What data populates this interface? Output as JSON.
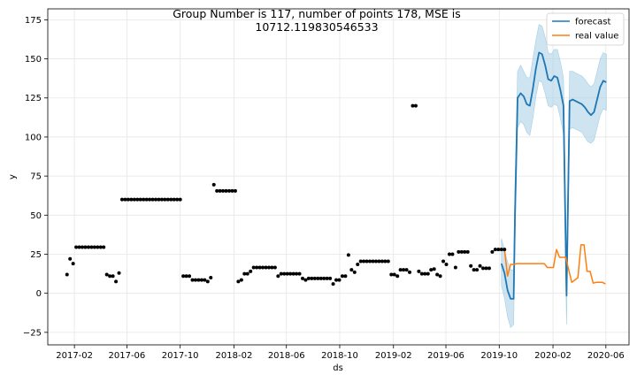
{
  "chart_data": {
    "type": "line",
    "title_lines": [
      "Group Number is 117, number of points 178, MSE is",
      "10712.119830546533"
    ],
    "xlabel": "ds",
    "ylabel": "y",
    "x_ticks": [
      "2017-02",
      "2017-06",
      "2017-10",
      "2018-02",
      "2018-06",
      "2018-10",
      "2019-02",
      "2019-06",
      "2019-10",
      "2020-02",
      "2020-06"
    ],
    "y_ticks": [
      "−25",
      "0",
      "25",
      "50",
      "75",
      "100",
      "125",
      "150",
      "175"
    ],
    "xlim": [
      "2016-12-02",
      "2020-07-24"
    ],
    "ylim": [
      -33,
      182
    ],
    "grid": true,
    "legend": {
      "position": "top-right",
      "entries": [
        "forecast",
        "real value"
      ]
    },
    "colors": {
      "forecast": "#1f77b4",
      "band": "#a6cee3",
      "real": "#ff7f0e",
      "points": "#000000"
    },
    "series": [
      {
        "name": "history",
        "kind": "scatter",
        "points": [
          [
            "2017-01-15",
            12
          ],
          [
            "2017-01-22",
            22
          ],
          [
            "2017-01-29",
            19
          ],
          [
            "2017-02-05",
            29.5
          ],
          [
            "2017-02-12",
            29.5
          ],
          [
            "2017-02-19",
            29.5
          ],
          [
            "2017-02-26",
            29.5
          ],
          [
            "2017-03-05",
            29.5
          ],
          [
            "2017-03-12",
            29.5
          ],
          [
            "2017-03-19",
            29.5
          ],
          [
            "2017-03-26",
            29.5
          ],
          [
            "2017-04-02",
            29.5
          ],
          [
            "2017-04-09",
            29.5
          ],
          [
            "2017-04-16",
            12
          ],
          [
            "2017-04-23",
            11
          ],
          [
            "2017-04-30",
            11
          ],
          [
            "2017-05-07",
            7.5
          ],
          [
            "2017-05-14",
            13
          ],
          [
            "2017-05-21",
            60
          ],
          [
            "2017-05-28",
            60
          ],
          [
            "2017-06-04",
            60
          ],
          [
            "2017-06-11",
            60
          ],
          [
            "2017-06-18",
            60
          ],
          [
            "2017-06-25",
            60
          ],
          [
            "2017-07-02",
            60
          ],
          [
            "2017-07-09",
            60
          ],
          [
            "2017-07-16",
            60
          ],
          [
            "2017-07-23",
            60
          ],
          [
            "2017-07-30",
            60
          ],
          [
            "2017-08-06",
            60
          ],
          [
            "2017-08-13",
            60
          ],
          [
            "2017-08-20",
            60
          ],
          [
            "2017-08-27",
            60
          ],
          [
            "2017-09-03",
            60
          ],
          [
            "2017-09-10",
            60
          ],
          [
            "2017-09-17",
            60
          ],
          [
            "2017-09-24",
            60
          ],
          [
            "2017-10-01",
            60
          ],
          [
            "2017-10-08",
            11
          ],
          [
            "2017-10-15",
            11
          ],
          [
            "2017-10-22",
            11
          ],
          [
            "2017-10-29",
            8.5
          ],
          [
            "2017-11-05",
            8.5
          ],
          [
            "2017-11-12",
            8.5
          ],
          [
            "2017-11-19",
            8.5
          ],
          [
            "2017-11-26",
            8.5
          ],
          [
            "2017-12-03",
            7.5
          ],
          [
            "2017-12-10",
            10
          ],
          [
            "2017-12-17",
            69.5
          ],
          [
            "2017-12-24",
            65.5
          ],
          [
            "2017-12-31",
            65.5
          ],
          [
            "2018-01-07",
            65.5
          ],
          [
            "2018-01-14",
            65.5
          ],
          [
            "2018-01-21",
            65.5
          ],
          [
            "2018-01-28",
            65.5
          ],
          [
            "2018-02-04",
            65.5
          ],
          [
            "2018-02-11",
            7.5
          ],
          [
            "2018-02-18",
            8.5
          ],
          [
            "2018-02-25",
            12.5
          ],
          [
            "2018-03-04",
            12.5
          ],
          [
            "2018-03-11",
            14
          ],
          [
            "2018-03-18",
            16.5
          ],
          [
            "2018-03-25",
            16.5
          ],
          [
            "2018-04-01",
            16.5
          ],
          [
            "2018-04-08",
            16.5
          ],
          [
            "2018-04-15",
            16.5
          ],
          [
            "2018-04-22",
            16.5
          ],
          [
            "2018-04-29",
            16.5
          ],
          [
            "2018-05-06",
            16.5
          ],
          [
            "2018-05-13",
            11
          ],
          [
            "2018-05-20",
            12.5
          ],
          [
            "2018-05-27",
            12.5
          ],
          [
            "2018-06-03",
            12.5
          ],
          [
            "2018-06-10",
            12.5
          ],
          [
            "2018-06-17",
            12.5
          ],
          [
            "2018-06-24",
            12.5
          ],
          [
            "2018-07-01",
            12.5
          ],
          [
            "2018-07-08",
            9.5
          ],
          [
            "2018-07-15",
            8.5
          ],
          [
            "2018-07-22",
            9.5
          ],
          [
            "2018-07-29",
            9.5
          ],
          [
            "2018-08-05",
            9.5
          ],
          [
            "2018-08-12",
            9.5
          ],
          [
            "2018-08-19",
            9.5
          ],
          [
            "2018-08-26",
            9.5
          ],
          [
            "2018-09-02",
            9.5
          ],
          [
            "2018-09-09",
            9.5
          ],
          [
            "2018-09-16",
            6
          ],
          [
            "2018-09-23",
            8.5
          ],
          [
            "2018-09-30",
            8.5
          ],
          [
            "2018-10-07",
            11
          ],
          [
            "2018-10-14",
            11
          ],
          [
            "2018-10-21",
            24.5
          ],
          [
            "2018-10-28",
            15
          ],
          [
            "2018-11-04",
            13.5
          ],
          [
            "2018-11-11",
            18.5
          ],
          [
            "2018-11-18",
            20.5
          ],
          [
            "2018-11-25",
            20.5
          ],
          [
            "2018-12-02",
            20.5
          ],
          [
            "2018-12-09",
            20.5
          ],
          [
            "2018-12-16",
            20.5
          ],
          [
            "2018-12-23",
            20.5
          ],
          [
            "2018-12-30",
            20.5
          ],
          [
            "2019-01-06",
            20.5
          ],
          [
            "2019-01-13",
            20.5
          ],
          [
            "2019-01-20",
            20.5
          ],
          [
            "2019-01-27",
            12
          ],
          [
            "2019-02-03",
            12
          ],
          [
            "2019-02-10",
            11
          ],
          [
            "2019-02-17",
            15
          ],
          [
            "2019-02-24",
            15
          ],
          [
            "2019-03-03",
            15
          ],
          [
            "2019-03-10",
            13.5
          ],
          [
            "2019-03-17",
            120
          ],
          [
            "2019-03-24",
            120
          ],
          [
            "2019-03-31",
            14
          ],
          [
            "2019-04-07",
            12.5
          ],
          [
            "2019-04-14",
            12.5
          ],
          [
            "2019-04-21",
            12.5
          ],
          [
            "2019-04-28",
            15
          ],
          [
            "2019-05-05",
            15.5
          ],
          [
            "2019-05-12",
            12
          ],
          [
            "2019-05-19",
            11
          ],
          [
            "2019-05-26",
            20.5
          ],
          [
            "2019-06-02",
            18.5
          ],
          [
            "2019-06-09",
            25
          ],
          [
            "2019-06-16",
            25
          ],
          [
            "2019-06-23",
            16.5
          ],
          [
            "2019-06-30",
            26.5
          ],
          [
            "2019-07-07",
            26.5
          ],
          [
            "2019-07-14",
            26.5
          ],
          [
            "2019-07-21",
            26.5
          ],
          [
            "2019-07-28",
            17.5
          ],
          [
            "2019-08-04",
            15
          ],
          [
            "2019-08-11",
            15
          ],
          [
            "2019-08-18",
            17.5
          ],
          [
            "2019-08-25",
            16
          ],
          [
            "2019-09-01",
            16
          ],
          [
            "2019-09-08",
            16
          ],
          [
            "2019-09-15",
            26.5
          ],
          [
            "2019-09-22",
            28
          ],
          [
            "2019-09-29",
            28
          ],
          [
            "2019-10-06",
            28
          ],
          [
            "2019-10-13",
            28
          ]
        ]
      },
      {
        "name": "forecast",
        "kind": "line",
        "points": [
          [
            "2019-10-06",
            19
          ],
          [
            "2019-10-13",
            13
          ],
          [
            "2019-10-20",
            2
          ],
          [
            "2019-10-27",
            -3.5
          ],
          [
            "2019-11-03",
            -3.5
          ],
          [
            "2019-11-06",
            50
          ],
          [
            "2019-11-09",
            87
          ],
          [
            "2019-11-12",
            125
          ],
          [
            "2019-11-19",
            128
          ],
          [
            "2019-11-26",
            126
          ],
          [
            "2019-12-03",
            121
          ],
          [
            "2019-12-10",
            120
          ],
          [
            "2019-12-17",
            131
          ],
          [
            "2019-12-24",
            144
          ],
          [
            "2019-12-31",
            154
          ],
          [
            "2020-01-07",
            153
          ],
          [
            "2020-01-14",
            146
          ],
          [
            "2020-01-21",
            137
          ],
          [
            "2020-01-28",
            136
          ],
          [
            "2020-02-04",
            139
          ],
          [
            "2020-02-11",
            138
          ],
          [
            "2020-02-18",
            130
          ],
          [
            "2020-02-25",
            120
          ],
          [
            "2020-03-03",
            -1.5
          ],
          [
            "2020-03-10",
            123
          ],
          [
            "2020-03-17",
            124
          ],
          [
            "2020-03-24",
            123
          ],
          [
            "2020-03-31",
            122
          ],
          [
            "2020-04-07",
            121
          ],
          [
            "2020-04-14",
            119
          ],
          [
            "2020-04-21",
            116
          ],
          [
            "2020-04-28",
            114
          ],
          [
            "2020-05-05",
            116
          ],
          [
            "2020-05-12",
            124
          ],
          [
            "2020-05-19",
            132
          ],
          [
            "2020-05-26",
            136
          ],
          [
            "2020-06-02",
            135
          ]
        ]
      },
      {
        "name": "forecast interval",
        "kind": "band",
        "points": [
          [
            "2019-10-06",
            5,
            35
          ],
          [
            "2019-10-13",
            -3,
            28
          ],
          [
            "2019-10-20",
            -15,
            20
          ],
          [
            "2019-10-27",
            -22,
            15
          ],
          [
            "2019-11-03",
            -20,
            15
          ],
          [
            "2019-11-06",
            30,
            70
          ],
          [
            "2019-11-09",
            70,
            105
          ],
          [
            "2019-11-12",
            106,
            142
          ],
          [
            "2019-11-19",
            110,
            146
          ],
          [
            "2019-11-26",
            108,
            142
          ],
          [
            "2019-12-03",
            103,
            138
          ],
          [
            "2019-12-10",
            101,
            138
          ],
          [
            "2019-12-17",
            112,
            150
          ],
          [
            "2019-12-24",
            126,
            162
          ],
          [
            "2019-12-31",
            136,
            172
          ],
          [
            "2020-01-07",
            135,
            171
          ],
          [
            "2020-01-14",
            128,
            164
          ],
          [
            "2020-01-21",
            120,
            154
          ],
          [
            "2020-01-28",
            119,
            153
          ],
          [
            "2020-02-04",
            121,
            156
          ],
          [
            "2020-02-11",
            120,
            156
          ],
          [
            "2020-02-18",
            112,
            148
          ],
          [
            "2020-02-25",
            102,
            138
          ],
          [
            "2020-03-03",
            -20,
            16
          ],
          [
            "2020-03-10",
            105,
            142
          ],
          [
            "2020-03-17",
            106,
            142
          ],
          [
            "2020-03-24",
            105,
            141
          ],
          [
            "2020-03-31",
            104,
            140
          ],
          [
            "2020-04-07",
            103,
            139
          ],
          [
            "2020-04-14",
            100,
            137
          ],
          [
            "2020-04-21",
            97,
            134
          ],
          [
            "2020-04-28",
            96,
            132
          ],
          [
            "2020-05-05",
            98,
            134
          ],
          [
            "2020-05-12",
            106,
            142
          ],
          [
            "2020-05-19",
            114,
            150
          ],
          [
            "2020-05-26",
            118,
            154
          ],
          [
            "2020-06-02",
            117,
            153
          ]
        ]
      },
      {
        "name": "real value",
        "kind": "line",
        "points": [
          [
            "2019-10-06",
            28
          ],
          [
            "2019-10-13",
            28
          ],
          [
            "2019-10-20",
            11
          ],
          [
            "2019-10-27",
            18.5
          ],
          [
            "2019-11-03",
            18.5
          ],
          [
            "2019-11-10",
            19
          ],
          [
            "2019-11-17",
            19
          ],
          [
            "2019-11-24",
            19
          ],
          [
            "2019-12-01",
            19
          ],
          [
            "2019-12-08",
            19
          ],
          [
            "2019-12-15",
            19
          ],
          [
            "2019-12-22",
            19
          ],
          [
            "2019-12-29",
            19
          ],
          [
            "2020-01-05",
            19
          ],
          [
            "2020-01-12",
            19
          ],
          [
            "2020-01-19",
            16.5
          ],
          [
            "2020-01-26",
            16.5
          ],
          [
            "2020-02-02",
            16.5
          ],
          [
            "2020-02-09",
            28
          ],
          [
            "2020-02-16",
            23
          ],
          [
            "2020-02-23",
            23
          ],
          [
            "2020-03-01",
            23
          ],
          [
            "2020-03-08",
            15
          ],
          [
            "2020-03-15",
            7
          ],
          [
            "2020-03-22",
            8.5
          ],
          [
            "2020-03-29",
            10
          ],
          [
            "2020-04-05",
            31
          ],
          [
            "2020-04-12",
            31
          ],
          [
            "2020-04-19",
            14
          ],
          [
            "2020-04-26",
            14
          ],
          [
            "2020-05-03",
            6.5
          ],
          [
            "2020-05-10",
            7
          ],
          [
            "2020-05-17",
            7
          ],
          [
            "2020-05-24",
            7
          ],
          [
            "2020-05-31",
            6
          ]
        ]
      }
    ]
  }
}
